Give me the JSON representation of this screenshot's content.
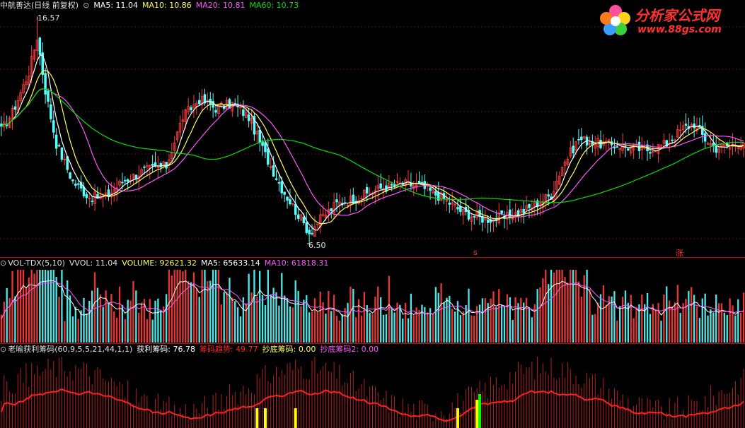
{
  "colors": {
    "up": "#ff3b3b",
    "down": "#54ffff",
    "ma5": "#ffffff",
    "ma10": "#ffff54",
    "ma20": "#ff54ff",
    "ma60": "#00e000",
    "sep": "#b01010",
    "chip_line": "#ff2020",
    "chip_bar": "#b22020",
    "yellow_bar": "#ffff00",
    "green_bar": "#00ff00"
  },
  "main_header": {
    "title": "中航善达(日线 前复权)",
    "ma5": "MA5: 11.04",
    "ma10": "MA10: 10.86",
    "ma20": "MA20: 10.81",
    "ma60": "MA60: 10.73"
  },
  "price_panel": {
    "high_label": "16.57",
    "low_label": "6.50",
    "marker_s": "s",
    "marker_zhang": "涨"
  },
  "vol_header": {
    "name": "VOL-TDX(5,10)",
    "vvol": "VVOL: 11.04",
    "volume": "VOLUME: 92621.32",
    "ma5": "MA5: 65633.14",
    "ma10": "MA10: 61818.31"
  },
  "ind_header": {
    "name": "老喻获利筹码(60,9,5,5,21,44,1,1)",
    "profit": "获利筹码: 76.78",
    "trend": "筹码趋势: 49.77",
    "bottom": "抄底筹码: 0.00",
    "bottom2": "抄底筹码2: 0.00"
  },
  "logo": {
    "title": "分析家公式网",
    "url": "www.88gs.com"
  },
  "chart_data": [
    {
      "type": "candlestick",
      "title": "中航善达(日线 前复权)",
      "ylim": [
        6.5,
        16.57
      ],
      "annotations": [
        "16.57",
        "6.50"
      ],
      "series": [
        {
          "name": "MA5",
          "last": 11.04
        },
        {
          "name": "MA10",
          "last": 10.86
        },
        {
          "name": "MA20",
          "last": 10.81
        },
        {
          "name": "MA60",
          "last": 10.73
        }
      ],
      "close_keypoints": [
        [
          0,
          11.6
        ],
        [
          4,
          12.4
        ],
        [
          10,
          14.2
        ],
        [
          13,
          15.8
        ],
        [
          16,
          13.4
        ],
        [
          20,
          11.0
        ],
        [
          26,
          9.3
        ],
        [
          32,
          8.6
        ],
        [
          38,
          8.6
        ],
        [
          44,
          9.3
        ],
        [
          52,
          9.8
        ],
        [
          60,
          10.0
        ],
        [
          66,
          12.2
        ],
        [
          72,
          13.0
        ],
        [
          78,
          12.6
        ],
        [
          84,
          12.8
        ],
        [
          90,
          12.2
        ],
        [
          96,
          10.5
        ],
        [
          102,
          9.0
        ],
        [
          108,
          7.8
        ],
        [
          112,
          7.0
        ],
        [
          116,
          7.6
        ],
        [
          122,
          8.3
        ],
        [
          130,
          8.6
        ],
        [
          138,
          9.0
        ],
        [
          146,
          9.2
        ],
        [
          152,
          9.1
        ],
        [
          160,
          8.6
        ],
        [
          168,
          7.9
        ],
        [
          176,
          7.6
        ],
        [
          184,
          7.7
        ],
        [
          192,
          8.1
        ],
        [
          200,
          8.7
        ],
        [
          204,
          10.0
        ],
        [
          210,
          11.2
        ],
        [
          218,
          11.0
        ],
        [
          226,
          10.9
        ],
        [
          234,
          10.7
        ],
        [
          242,
          11.0
        ],
        [
          248,
          11.7
        ],
        [
          252,
          11.9
        ],
        [
          256,
          11.2
        ],
        [
          260,
          10.8
        ],
        [
          266,
          10.95
        ],
        [
          270,
          11.1
        ]
      ]
    },
    {
      "type": "bar",
      "title": "VOL-TDX(5,10)",
      "series": [
        {
          "name": "VOLUME",
          "last": 92621.32
        },
        {
          "name": "MA5",
          "last": 65633.14
        },
        {
          "name": "MA10",
          "last": 61818.31
        }
      ]
    },
    {
      "type": "bar",
      "title": "老喻获利筹码(60,9,5,5,21,44,1,1)",
      "series": [
        {
          "name": "获利筹码",
          "last": 76.78
        },
        {
          "name": "筹码趋势",
          "last": 49.77
        },
        {
          "name": "抄底筹码",
          "last": 0.0
        },
        {
          "name": "抄底筹码2",
          "last": 0.0
        }
      ]
    }
  ]
}
